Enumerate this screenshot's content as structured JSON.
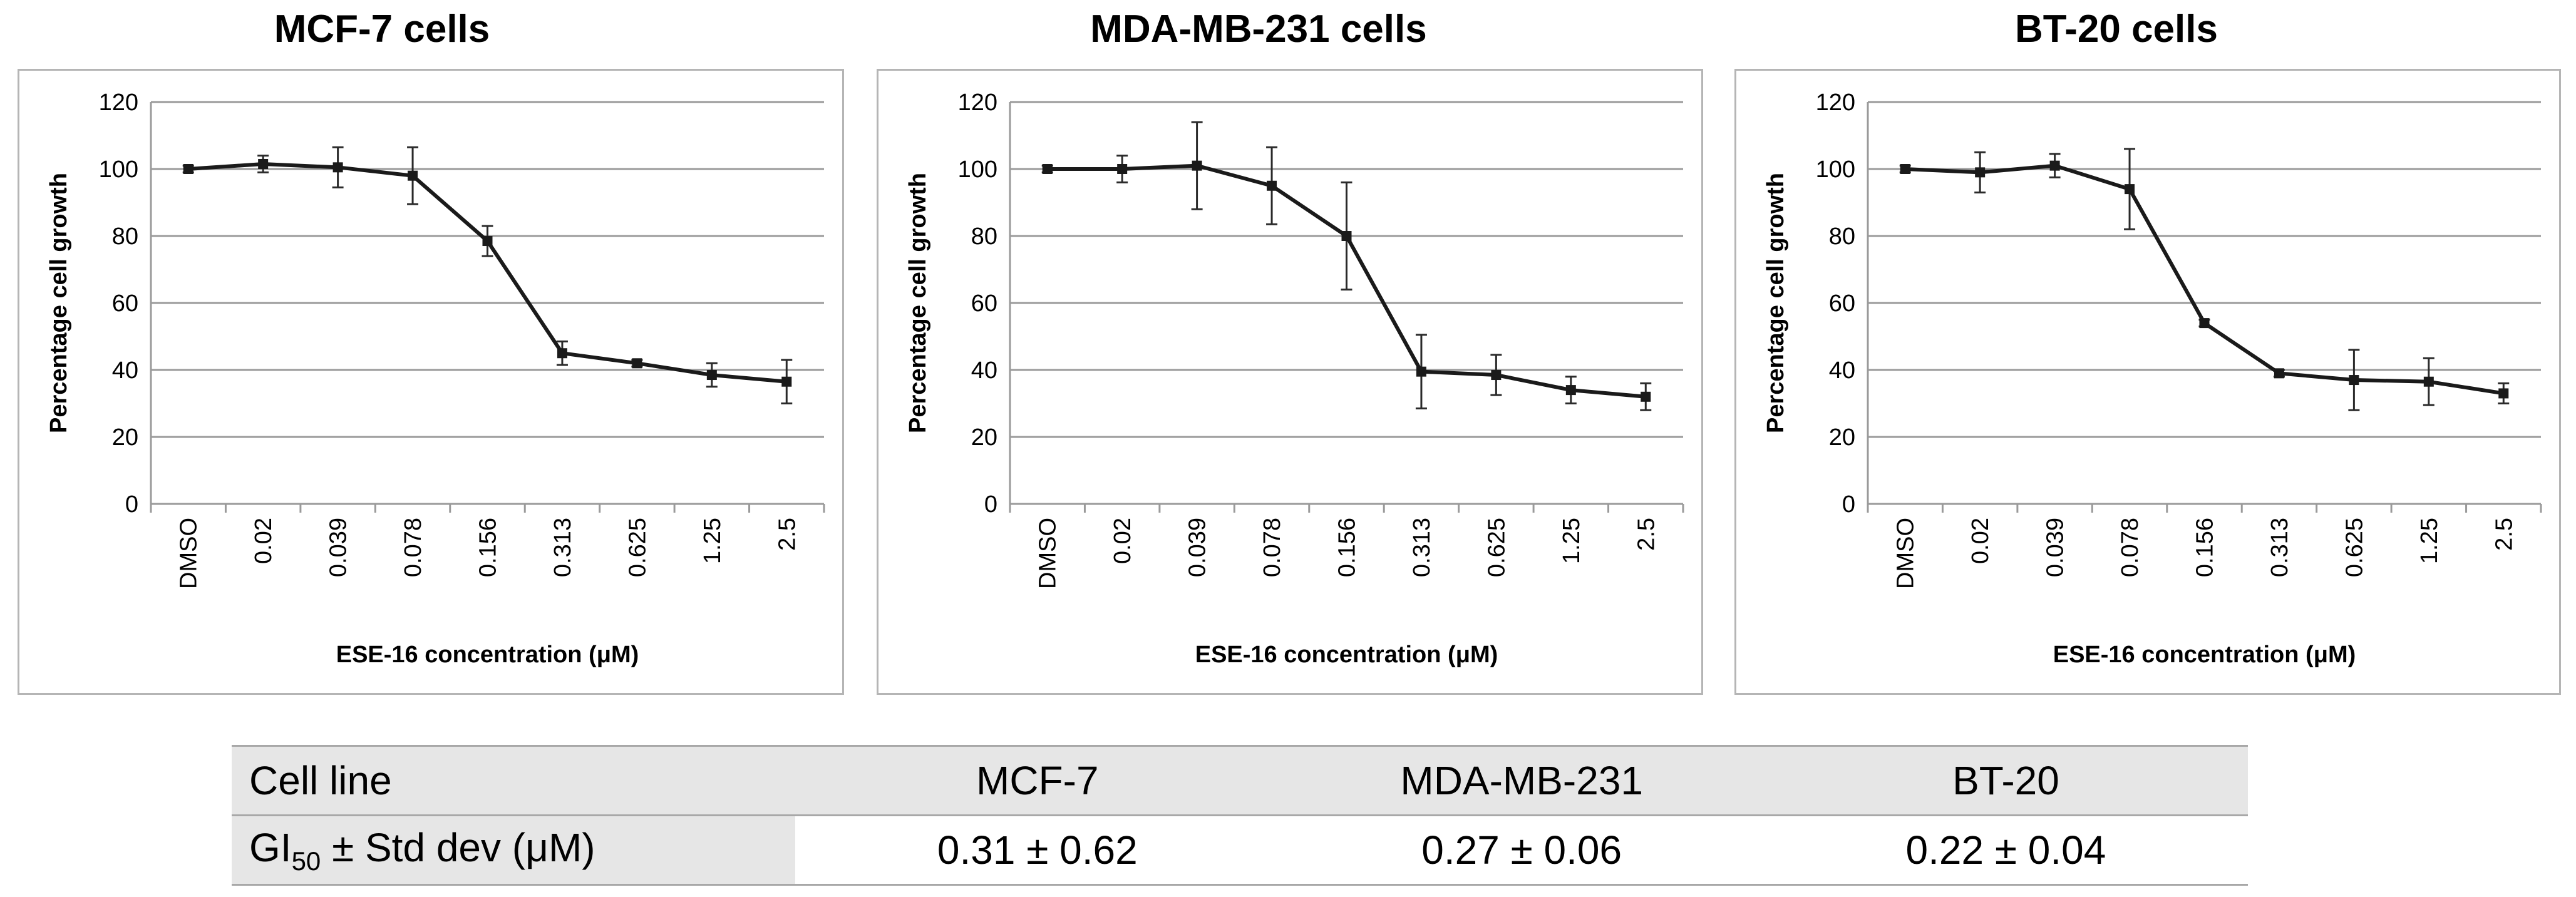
{
  "chart_data": [
    {
      "type": "line",
      "title": "MCF-7 cells",
      "xlabel": "ESE-16 concentration (μM)",
      "ylabel": "Percentage cell growth",
      "categories": [
        "DMSO",
        "0.02",
        "0.039",
        "0.078",
        "0.156",
        "0.313",
        "0.625",
        "1.25",
        "2.5"
      ],
      "ylim": [
        0,
        120
      ],
      "yticks": [
        0,
        20,
        40,
        60,
        80,
        100,
        120
      ],
      "grid": true,
      "series": [
        {
          "name": "MCF-7",
          "values": [
            100,
            101.5,
            100.5,
            98,
            78.5,
            45,
            42,
            38.5,
            36.5
          ],
          "error": [
            1,
            2.5,
            6,
            8.5,
            4.5,
            3.5,
            1,
            3.5,
            6.5
          ]
        }
      ]
    },
    {
      "type": "line",
      "title": "MDA-MB-231 cells",
      "xlabel": "ESE-16 concentration (μM)",
      "ylabel": "Percentage cell growth",
      "categories": [
        "DMSO",
        "0.02",
        "0.039",
        "0.078",
        "0.156",
        "0.313",
        "0.625",
        "1.25",
        "2.5"
      ],
      "ylim": [
        0,
        120
      ],
      "yticks": [
        0,
        20,
        40,
        60,
        80,
        100,
        120
      ],
      "grid": true,
      "series": [
        {
          "name": "MDA-MB-231",
          "values": [
            100,
            100,
            101,
            95,
            80,
            39.5,
            38.5,
            34,
            32
          ],
          "error": [
            1,
            4,
            13,
            11.5,
            16,
            11,
            6,
            4,
            4
          ]
        }
      ]
    },
    {
      "type": "line",
      "title": "BT-20 cells",
      "xlabel": "ESE-16 concentration (μM)",
      "ylabel": "Percentage cell growth",
      "categories": [
        "DMSO",
        "0.02",
        "0.039",
        "0.078",
        "0.156",
        "0.313",
        "0.625",
        "1.25",
        "2.5"
      ],
      "ylim": [
        0,
        120
      ],
      "yticks": [
        0,
        20,
        40,
        60,
        80,
        100,
        120
      ],
      "grid": true,
      "series": [
        {
          "name": "BT-20",
          "values": [
            100,
            99,
            101,
            94,
            54,
            39,
            37,
            36.5,
            33
          ],
          "error": [
            1,
            6,
            3.5,
            12,
            1,
            1,
            9,
            7,
            3
          ]
        }
      ]
    }
  ],
  "table": {
    "header": {
      "label": "Cell line",
      "cols": [
        "MCF-7",
        "MDA-MB-231",
        "BT-20"
      ]
    },
    "row": {
      "label_main": "GI",
      "label_sub": "50",
      "label_rest": " ± Std dev (μM)",
      "values": [
        "0.31 ± 0.62",
        "0.27 ± 0.06",
        "0.22 ± 0.04"
      ]
    }
  },
  "colors": {
    "line": "#1a1a1a",
    "grid": "#9a9a9a",
    "panel_border": "#b5b5b5",
    "table_fill": "#e6e6e6"
  }
}
